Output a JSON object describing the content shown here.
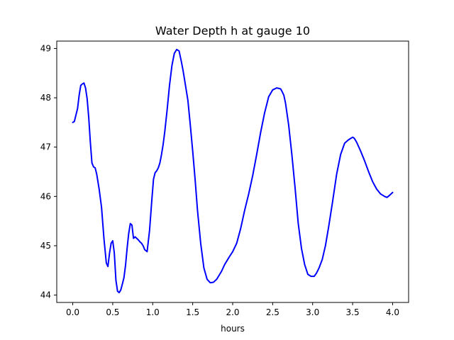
{
  "chart_data": {
    "type": "line",
    "title": "Water Depth h at gauge 10",
    "xlabel": "hours",
    "ylabel": "",
    "xlim": [
      -0.2,
      4.2
    ],
    "ylim": [
      43.85,
      49.15
    ],
    "xticks": [
      0.0,
      0.5,
      1.0,
      1.5,
      2.0,
      2.5,
      3.0,
      3.5,
      4.0
    ],
    "xtick_labels": [
      "0.0",
      "0.5",
      "1.0",
      "1.5",
      "2.0",
      "2.5",
      "3.0",
      "3.5",
      "4.0"
    ],
    "yticks": [
      44,
      45,
      46,
      47,
      48,
      49
    ],
    "ytick_labels": [
      "44",
      "45",
      "46",
      "47",
      "48",
      "49"
    ],
    "grid": false,
    "series": [
      {
        "color": "#0000ff",
        "x": [
          0.0,
          0.02,
          0.04,
          0.06,
          0.08,
          0.1,
          0.12,
          0.14,
          0.16,
          0.18,
          0.2,
          0.22,
          0.24,
          0.26,
          0.28,
          0.3,
          0.33,
          0.36,
          0.39,
          0.42,
          0.44,
          0.46,
          0.48,
          0.5,
          0.52,
          0.54,
          0.56,
          0.58,
          0.6,
          0.62,
          0.64,
          0.66,
          0.68,
          0.7,
          0.72,
          0.74,
          0.76,
          0.78,
          0.8,
          0.82,
          0.84,
          0.86,
          0.88,
          0.9,
          0.93,
          0.96,
          0.99,
          1.01,
          1.03,
          1.05,
          1.07,
          1.09,
          1.11,
          1.13,
          1.15,
          1.18,
          1.21,
          1.24,
          1.27,
          1.3,
          1.33,
          1.36,
          1.38,
          1.4,
          1.42,
          1.44,
          1.47,
          1.5,
          1.53,
          1.56,
          1.6,
          1.64,
          1.68,
          1.72,
          1.76,
          1.8,
          1.83,
          1.86,
          1.88,
          1.9,
          1.93,
          1.96,
          2.0,
          2.05,
          2.1,
          2.15,
          2.2,
          2.25,
          2.3,
          2.35,
          2.4,
          2.45,
          2.5,
          2.55,
          2.58,
          2.6,
          2.62,
          2.64,
          2.66,
          2.7,
          2.74,
          2.78,
          2.82,
          2.86,
          2.9,
          2.94,
          2.98,
          3.02,
          3.05,
          3.08,
          3.12,
          3.16,
          3.2,
          3.25,
          3.3,
          3.35,
          3.4,
          3.45,
          3.48,
          3.5,
          3.52,
          3.55,
          3.6,
          3.65,
          3.7,
          3.75,
          3.8,
          3.85,
          3.9,
          3.93,
          3.96,
          4.0
        ],
        "y": [
          47.5,
          47.52,
          47.65,
          47.78,
          48.05,
          48.25,
          48.28,
          48.3,
          48.2,
          47.98,
          47.6,
          47.1,
          46.68,
          46.6,
          46.58,
          46.45,
          46.15,
          45.78,
          45.15,
          44.65,
          44.58,
          44.85,
          45.05,
          45.1,
          44.85,
          44.3,
          44.08,
          44.05,
          44.1,
          44.22,
          44.35,
          44.6,
          44.95,
          45.25,
          45.45,
          45.42,
          45.15,
          45.18,
          45.15,
          45.12,
          45.08,
          45.05,
          45.0,
          44.92,
          44.88,
          45.3,
          45.95,
          46.35,
          46.48,
          46.52,
          46.58,
          46.68,
          46.85,
          47.05,
          47.3,
          47.75,
          48.25,
          48.65,
          48.9,
          48.98,
          48.95,
          48.72,
          48.55,
          48.35,
          48.15,
          47.95,
          47.45,
          46.92,
          46.35,
          45.72,
          45.05,
          44.55,
          44.32,
          44.25,
          44.26,
          44.32,
          44.4,
          44.48,
          44.55,
          44.62,
          44.7,
          44.78,
          44.88,
          45.05,
          45.35,
          45.72,
          46.05,
          46.42,
          46.85,
          47.3,
          47.7,
          48.02,
          48.16,
          48.2,
          48.19,
          48.18,
          48.12,
          48.05,
          47.9,
          47.45,
          46.85,
          46.18,
          45.45,
          44.95,
          44.62,
          44.42,
          44.38,
          44.38,
          44.45,
          44.55,
          44.72,
          45.0,
          45.38,
          45.9,
          46.45,
          46.85,
          47.08,
          47.15,
          47.18,
          47.2,
          47.18,
          47.1,
          46.92,
          46.72,
          46.5,
          46.3,
          46.15,
          46.05,
          46.0,
          45.98,
          46.02,
          46.08
        ]
      }
    ]
  }
}
